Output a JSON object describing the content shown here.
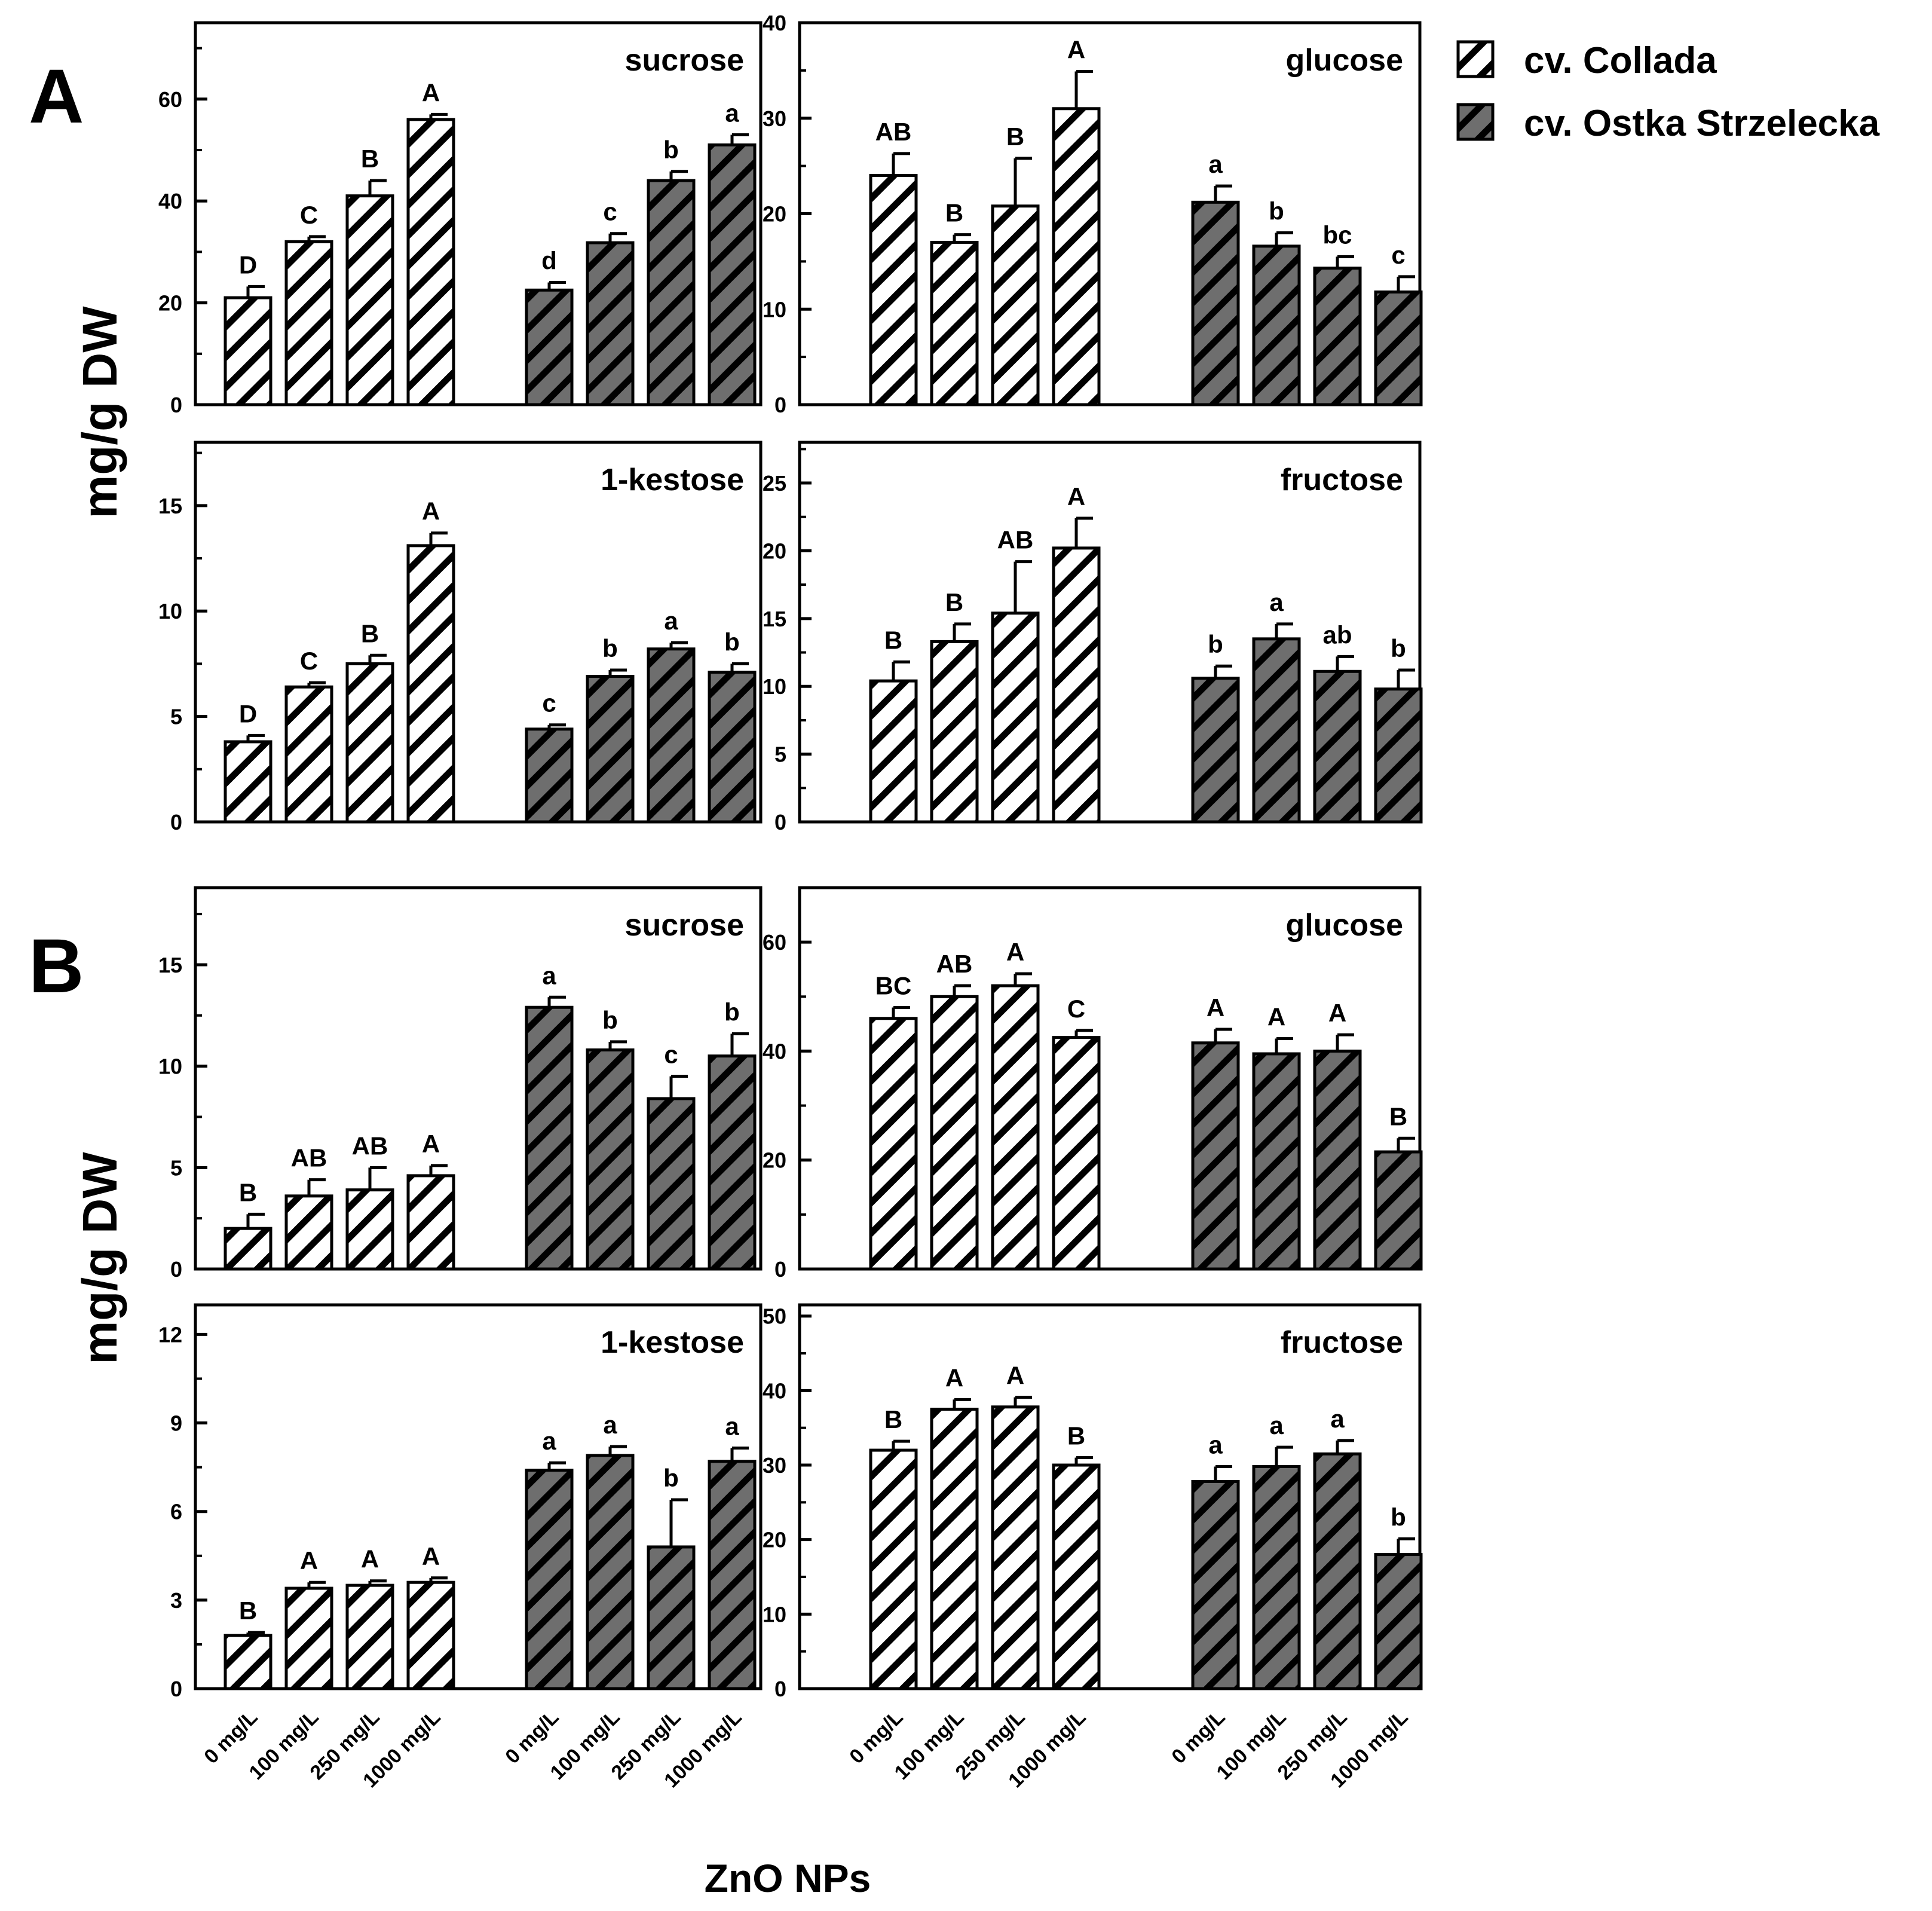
{
  "figure": {
    "panel_A_letter": "A",
    "panel_B_letter": "B",
    "ylabel_A": "mg/g DW",
    "ylabel_B": "mg/g DW",
    "xlabel": "ZnO NPs"
  },
  "legend": {
    "items": [
      {
        "label": "cv. Collada",
        "fill": "#ffffff"
      },
      {
        "label": "cv. Ostka Strzelecka",
        "fill": "#6e6e6e"
      }
    ]
  },
  "colors": {
    "stripe": "#000000",
    "collada_fill": "#ffffff",
    "ostka_fill": "#6e6e6e"
  },
  "chart_data": [
    {
      "id": "A-sucrose",
      "type": "bar",
      "title": "sucrose",
      "ylim": [
        0,
        75
      ],
      "yticks": [
        0,
        20,
        40,
        60
      ],
      "categories": [
        "0 mg/L",
        "100 mg/L",
        "250 mg/L",
        "1000 mg/L"
      ],
      "series": [
        {
          "name": "cv. Collada",
          "values": [
            21,
            32,
            41,
            56
          ],
          "errors": [
            2.2,
            1.0,
            3.0,
            1.0
          ],
          "labels": [
            "D",
            "C",
            "B",
            "A"
          ]
        },
        {
          "name": "cv. Ostka Strzelecka",
          "values": [
            22.5,
            31.8,
            44,
            51
          ],
          "errors": [
            1.5,
            1.8,
            1.8,
            2.0
          ],
          "labels": [
            "d",
            "c",
            "b",
            "a"
          ]
        }
      ]
    },
    {
      "id": "A-glucose",
      "type": "bar",
      "title": "glucose",
      "ylim": [
        0,
        40
      ],
      "yticks": [
        0,
        10,
        20,
        30,
        40
      ],
      "categories": [
        "0 mg/L",
        "100 mg/L",
        "250 mg/L",
        "1000 mg/L"
      ],
      "series": [
        {
          "name": "cv. Collada",
          "values": [
            24,
            17,
            20.8,
            31
          ],
          "errors": [
            2.3,
            0.8,
            5.0,
            3.9
          ],
          "labels": [
            "AB",
            "B",
            "B",
            "A"
          ]
        },
        {
          "name": "cv. Ostka Strzelecka",
          "values": [
            21.2,
            16.6,
            14.3,
            11.8
          ],
          "errors": [
            1.7,
            1.4,
            1.2,
            1.6
          ],
          "labels": [
            "a",
            "b",
            "bc",
            "c"
          ]
        }
      ]
    },
    {
      "id": "A-1-kestose",
      "type": "bar",
      "title": "1-kestose",
      "ylim": [
        0,
        18
      ],
      "yticks": [
        0,
        5,
        10,
        15
      ],
      "categories": [
        "0 mg/L",
        "100 mg/L",
        "250 mg/L",
        "1000 mg/L"
      ],
      "series": [
        {
          "name": "cv. Collada",
          "values": [
            3.8,
            6.4,
            7.5,
            13.1
          ],
          "errors": [
            0.3,
            0.2,
            0.4,
            0.6
          ],
          "labels": [
            "D",
            "C",
            "B",
            "A"
          ]
        },
        {
          "name": "cv. Ostka Strzelecka",
          "values": [
            4.4,
            6.9,
            8.2,
            7.1
          ],
          "errors": [
            0.2,
            0.3,
            0.3,
            0.4
          ],
          "labels": [
            "c",
            "b",
            "a",
            "b"
          ]
        }
      ]
    },
    {
      "id": "A-fructose",
      "type": "bar",
      "title": "fructose",
      "ylim": [
        0,
        28
      ],
      "yticks": [
        0,
        5,
        10,
        15,
        20,
        25
      ],
      "categories": [
        "0 mg/L",
        "100 mg/L",
        "250 mg/L",
        "1000 mg/L"
      ],
      "series": [
        {
          "name": "cv. Collada",
          "values": [
            10.4,
            13.3,
            15.4,
            20.2
          ],
          "errors": [
            1.4,
            1.3,
            3.8,
            2.2
          ],
          "labels": [
            "B",
            "B",
            "AB",
            "A"
          ]
        },
        {
          "name": "cv. Ostka Strzelecka",
          "values": [
            10.6,
            13.5,
            11.1,
            9.8
          ],
          "errors": [
            0.9,
            1.1,
            1.1,
            1.4
          ],
          "labels": [
            "b",
            "a",
            "ab",
            "b"
          ]
        }
      ]
    },
    {
      "id": "B-sucrose",
      "type": "bar",
      "title": "sucrose",
      "ylim": [
        0,
        18.8
      ],
      "yticks": [
        0,
        5,
        10,
        15
      ],
      "categories": [
        "0 mg/L",
        "100 mg/L",
        "250 mg/L",
        "1000 mg/L"
      ],
      "series": [
        {
          "name": "cv. Collada",
          "values": [
            2.0,
            3.6,
            3.9,
            4.6
          ],
          "errors": [
            0.7,
            0.8,
            1.1,
            0.5
          ],
          "labels": [
            "B",
            "AB",
            "AB",
            "A"
          ]
        },
        {
          "name": "cv. Ostka Strzelecka",
          "values": [
            12.9,
            10.8,
            8.4,
            10.5
          ],
          "errors": [
            0.5,
            0.4,
            1.1,
            1.1
          ],
          "labels": [
            "a",
            "b",
            "c",
            "b"
          ]
        }
      ]
    },
    {
      "id": "B-glucose",
      "type": "bar",
      "title": "glucose",
      "ylim": [
        0,
        70
      ],
      "yticks": [
        0,
        20,
        40,
        60
      ],
      "categories": [
        "0 mg/L",
        "100 mg/L",
        "250 mg/L",
        "1000 mg/L"
      ],
      "series": [
        {
          "name": "cv. Collada",
          "values": [
            46,
            50,
            52,
            42.5
          ],
          "errors": [
            2.0,
            2.0,
            2.2,
            1.3
          ],
          "labels": [
            "BC",
            "AB",
            "A",
            "C"
          ]
        },
        {
          "name": "cv. Ostka Strzelecka",
          "values": [
            41.5,
            39.5,
            40,
            21.5
          ],
          "errors": [
            2.5,
            2.8,
            3.0,
            2.5
          ],
          "labels": [
            "A",
            "A",
            "A",
            "B"
          ]
        }
      ]
    },
    {
      "id": "B-1-kestose",
      "type": "bar",
      "title": "1-kestose",
      "ylim": [
        0,
        13
      ],
      "yticks": [
        0,
        3,
        6,
        9,
        12
      ],
      "categories": [
        "0 mg/L",
        "100 mg/L",
        "250 mg/L",
        "1000 mg/L"
      ],
      "series": [
        {
          "name": "cv. Collada",
          "values": [
            1.8,
            3.4,
            3.5,
            3.6
          ],
          "errors": [
            0.1,
            0.2,
            0.15,
            0.15
          ],
          "labels": [
            "B",
            "A",
            "A",
            "A"
          ]
        },
        {
          "name": "cv. Ostka Strzelecka",
          "values": [
            7.4,
            7.9,
            4.8,
            7.7
          ],
          "errors": [
            0.25,
            0.3,
            1.6,
            0.45
          ],
          "labels": [
            "a",
            "a",
            "b",
            "a"
          ]
        }
      ]
    },
    {
      "id": "B-fructose",
      "type": "bar",
      "title": "fructose",
      "ylim": [
        0,
        51.5
      ],
      "yticks": [
        0,
        10,
        20,
        30,
        40,
        50
      ],
      "categories": [
        "0 mg/L",
        "100 mg/L",
        "250 mg/L",
        "1000 mg/L"
      ],
      "series": [
        {
          "name": "cv. Collada",
          "values": [
            32,
            37.5,
            37.8,
            30
          ],
          "errors": [
            1.2,
            1.3,
            1.3,
            1.0
          ],
          "labels": [
            "B",
            "A",
            "A",
            "B"
          ]
        },
        {
          "name": "cv. Ostka Strzelecka",
          "values": [
            27.8,
            29.8,
            31.5,
            18
          ],
          "errors": [
            2.0,
            2.6,
            1.8,
            2.1
          ],
          "labels": [
            "a",
            "a",
            "a",
            "b"
          ]
        }
      ]
    }
  ]
}
